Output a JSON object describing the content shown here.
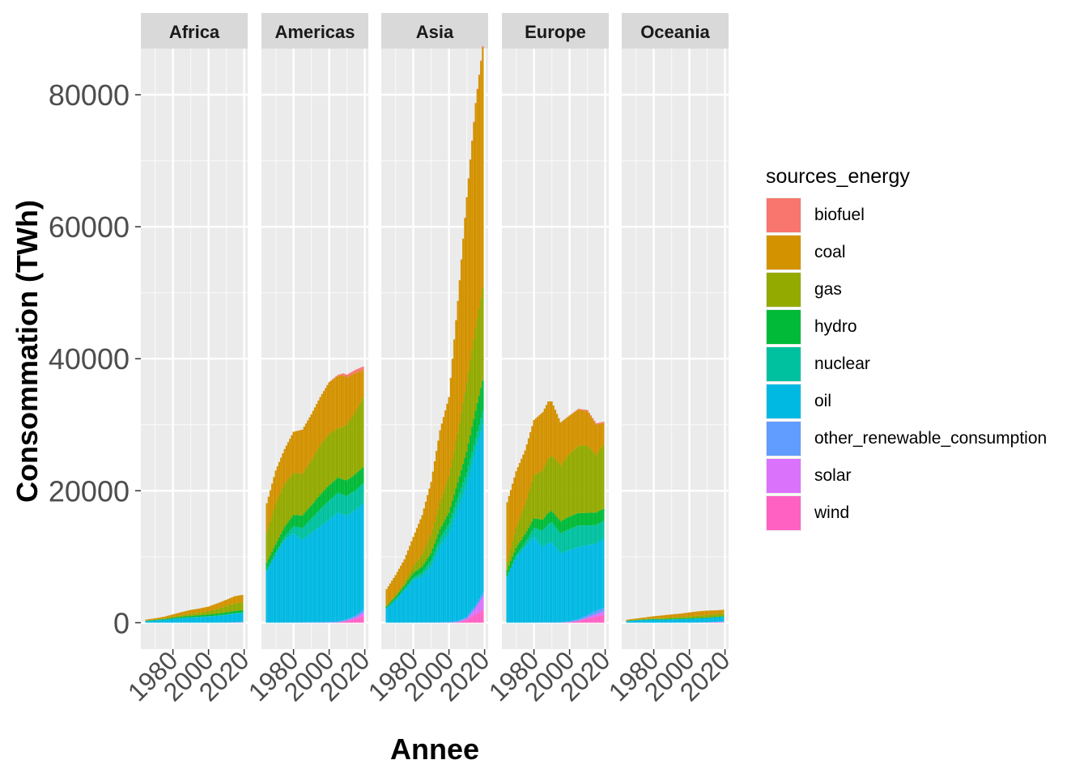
{
  "chart_data": {
    "type": "bar",
    "stacked": true,
    "facets": [
      "Africa",
      "Americas",
      "Asia",
      "Europe",
      "Oceania"
    ],
    "xlabel": "Annee",
    "ylabel": "Consommation (TWh)",
    "xlim": [
      1962,
      2022
    ],
    "ylim": [
      -4000,
      87000
    ],
    "x_ticks": [
      "1980",
      "2000",
      "2020"
    ],
    "y_ticks": [
      "0",
      "20000",
      "40000",
      "60000",
      "80000"
    ],
    "grid": true,
    "legend_title": "sources_energy",
    "legend_position": "right",
    "series_order_bottom_to_top": [
      "wind",
      "solar",
      "other_renewable_consumption",
      "oil",
      "nuclear",
      "hydro",
      "gas",
      "coal",
      "biofuel"
    ],
    "series": [
      {
        "name": "biofuel",
        "color": "#F8766D"
      },
      {
        "name": "coal",
        "color": "#D39200"
      },
      {
        "name": "gas",
        "color": "#93AA00"
      },
      {
        "name": "hydro",
        "color": "#00BA38"
      },
      {
        "name": "nuclear",
        "color": "#00C19F"
      },
      {
        "name": "oil",
        "color": "#00B9E3"
      },
      {
        "name": "other_renewable_consumption",
        "color": "#619CFF"
      },
      {
        "name": "solar",
        "color": "#DB72FB"
      },
      {
        "name": "wind",
        "color": "#FF61C3"
      }
    ],
    "keyframes": {
      "Africa": {
        "years": [
          1965,
          1970,
          1975,
          1980,
          1985,
          1990,
          1995,
          2000,
          2005,
          2010,
          2015,
          2019
        ],
        "values": {
          "biofuel": [
            0,
            0,
            0,
            0,
            0,
            0,
            0,
            0,
            0,
            0,
            0,
            0
          ],
          "coal": [
            150,
            200,
            280,
            380,
            500,
            600,
            650,
            700,
            850,
            950,
            1100,
            1100
          ],
          "gas": [
            15,
            30,
            60,
            120,
            200,
            300,
            380,
            500,
            700,
            950,
            1150,
            1200
          ],
          "hydro": [
            60,
            90,
            120,
            160,
            190,
            210,
            240,
            260,
            300,
            330,
            350,
            380
          ],
          "nuclear": [
            0,
            0,
            0,
            0,
            30,
            30,
            40,
            40,
            40,
            40,
            40,
            40
          ],
          "oil": [
            250,
            350,
            450,
            600,
            700,
            800,
            850,
            950,
            1050,
            1200,
            1350,
            1400
          ],
          "other_renewable_consumption": [
            0,
            0,
            0,
            0,
            0,
            0,
            0,
            0,
            0,
            5,
            10,
            15
          ],
          "solar": [
            0,
            0,
            0,
            0,
            0,
            0,
            0,
            0,
            0,
            0,
            20,
            40
          ],
          "wind": [
            0,
            0,
            0,
            0,
            0,
            0,
            0,
            0,
            0,
            5,
            20,
            35
          ]
        }
      },
      "Americas": {
        "years": [
          1965,
          1970,
          1975,
          1980,
          1985,
          1990,
          1995,
          2000,
          2005,
          2008,
          2010,
          2015,
          2019
        ],
        "values": {
          "biofuel": [
            0,
            0,
            0,
            0,
            0,
            0,
            0,
            50,
            150,
            300,
            400,
            500,
            550
          ],
          "coal": [
            4500,
            5000,
            5300,
            6200,
            6700,
            7000,
            7300,
            7800,
            7900,
            7800,
            7100,
            5800,
            4200
          ],
          "gas": [
            4500,
            6200,
            6500,
            6400,
            6300,
            6800,
            7500,
            7800,
            7500,
            8000,
            8500,
            9500,
            10500
          ],
          "hydro": [
            1100,
            1300,
            1500,
            1700,
            1900,
            2000,
            2200,
            2300,
            2300,
            2300,
            2350,
            2450,
            2450
          ],
          "nuclear": [
            10,
            60,
            500,
            1100,
            1800,
            2200,
            2600,
            2900,
            3000,
            3000,
            3000,
            3000,
            3000
          ],
          "oil": [
            8000,
            10500,
            12500,
            13500,
            12500,
            13500,
            14500,
            15500,
            16500,
            16000,
            15700,
            16000,
            16200
          ],
          "other_renewable_consumption": [
            0,
            0,
            10,
            30,
            50,
            80,
            100,
            120,
            150,
            170,
            200,
            300,
            400
          ],
          "solar": [
            0,
            0,
            0,
            0,
            0,
            0,
            0,
            0,
            5,
            10,
            30,
            200,
            500
          ],
          "wind": [
            0,
            0,
            0,
            0,
            0,
            0,
            0,
            10,
            50,
            200,
            300,
            600,
            1000
          ]
        }
      },
      "Asia": {
        "years": [
          1965,
          1970,
          1975,
          1980,
          1985,
          1990,
          1995,
          2000,
          2005,
          2010,
          2015,
          2019
        ],
        "values": {
          "biofuel": [
            0,
            0,
            0,
            0,
            0,
            0,
            0,
            0,
            0,
            50,
            100,
            150
          ],
          "coal": [
            2500,
            3000,
            3500,
            4500,
            6000,
            8000,
            11000,
            12000,
            20000,
            28000,
            34000,
            36500
          ],
          "gas": [
            100,
            300,
            500,
            1000,
            1800,
            2800,
            4000,
            5500,
            7500,
            10500,
            12500,
            14000
          ],
          "hydro": [
            300,
            400,
            500,
            700,
            900,
            1100,
            1400,
            1700,
            2300,
            3200,
            4200,
            4700
          ],
          "nuclear": [
            0,
            20,
            100,
            300,
            600,
            900,
            1200,
            1400,
            1700,
            1900,
            1800,
            2000
          ],
          "oil": [
            2200,
            3500,
            5000,
            6500,
            7000,
            8500,
            11500,
            13500,
            17000,
            20000,
            23500,
            25500
          ],
          "other_renewable_consumption": [
            0,
            0,
            0,
            10,
            20,
            40,
            60,
            80,
            150,
            250,
            450,
            600
          ],
          "solar": [
            0,
            0,
            0,
            0,
            0,
            0,
            0,
            0,
            10,
            100,
            900,
            2000
          ],
          "wind": [
            0,
            0,
            0,
            0,
            0,
            0,
            0,
            10,
            100,
            500,
            1300,
            1900
          ]
        }
      },
      "Europe": {
        "years": [
          1965,
          1970,
          1975,
          1980,
          1985,
          1988,
          1990,
          1995,
          2000,
          2005,
          2010,
          2015,
          2019
        ],
        "values": {
          "biofuel": [
            0,
            0,
            0,
            0,
            0,
            0,
            0,
            0,
            20,
            100,
            180,
            200,
            200
          ],
          "coal": [
            9000,
            8600,
            8200,
            8400,
            8800,
            8700,
            8200,
            6500,
            5800,
            5500,
            5200,
            4600,
            3300
          ],
          "gas": [
            1200,
            3000,
            4500,
            6500,
            7500,
            8200,
            8400,
            8500,
            9500,
            10200,
            10200,
            8700,
            9700
          ],
          "hydro": [
            1000,
            1200,
            1300,
            1500,
            1600,
            1700,
            1700,
            1800,
            1900,
            1900,
            1900,
            1900,
            1800
          ],
          "nuclear": [
            50,
            150,
            600,
            1300,
            2500,
            2900,
            3000,
            3000,
            3200,
            3200,
            3000,
            2800,
            2700
          ],
          "oil": [
            7000,
            10000,
            11500,
            13000,
            11500,
            12000,
            12200,
            10500,
            10800,
            11000,
            10600,
            10200,
            10500
          ],
          "other_renewable_consumption": [
            0,
            0,
            0,
            10,
            20,
            30,
            40,
            50,
            100,
            200,
            350,
            500,
            550
          ],
          "solar": [
            0,
            0,
            0,
            0,
            0,
            0,
            0,
            0,
            0,
            20,
            200,
            400,
            500
          ],
          "wind": [
            0,
            0,
            0,
            0,
            0,
            0,
            0,
            10,
            100,
            300,
            600,
            900,
            1200
          ]
        }
      },
      "Oceania": {
        "years": [
          1965,
          1970,
          1975,
          1980,
          1985,
          1990,
          1995,
          2000,
          2005,
          2010,
          2015,
          2019
        ],
        "values": {
          "biofuel": [
            0,
            0,
            0,
            0,
            0,
            0,
            0,
            0,
            0,
            0,
            0,
            0
          ],
          "coal": [
            150,
            200,
            250,
            320,
            400,
            450,
            500,
            580,
            650,
            660,
            560,
            520
          ],
          "gas": [
            0,
            10,
            50,
            100,
            150,
            190,
            230,
            280,
            320,
            360,
            400,
            430
          ],
          "hydro": [
            60,
            70,
            80,
            90,
            100,
            110,
            110,
            110,
            110,
            110,
            110,
            110
          ],
          "nuclear": [
            0,
            0,
            0,
            0,
            0,
            0,
            0,
            0,
            0,
            0,
            0,
            0
          ],
          "oil": [
            250,
            350,
            420,
            480,
            460,
            500,
            530,
            580,
            620,
            650,
            700,
            720
          ],
          "other_renewable_consumption": [
            0,
            0,
            0,
            0,
            0,
            5,
            10,
            10,
            15,
            20,
            25,
            30
          ],
          "solar": [
            0,
            0,
            0,
            0,
            0,
            0,
            0,
            0,
            0,
            5,
            30,
            70
          ],
          "wind": [
            0,
            0,
            0,
            0,
            0,
            0,
            0,
            0,
            10,
            30,
            50,
            80
          ]
        }
      }
    }
  }
}
